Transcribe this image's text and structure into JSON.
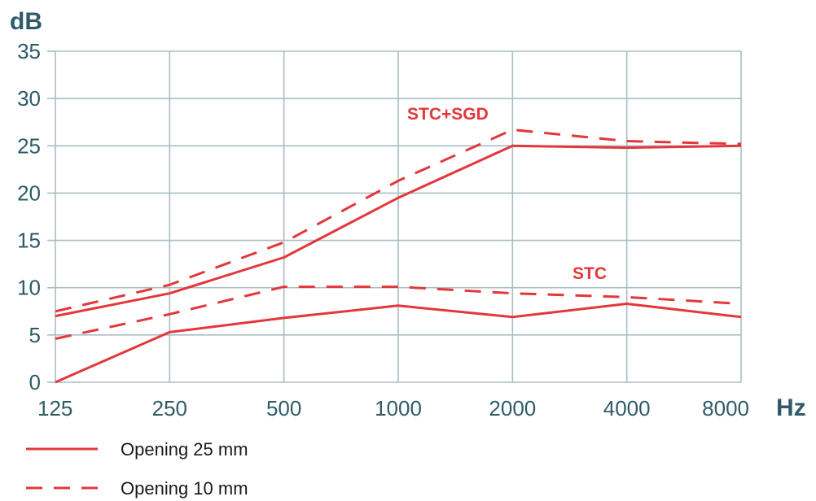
{
  "chart_data": {
    "type": "line",
    "y_unit": "dB",
    "x_unit": "Hz",
    "categories": [
      "125",
      "250",
      "500",
      "1000",
      "2000",
      "4000",
      "8000"
    ],
    "ylim": [
      0,
      35
    ],
    "yticks": [
      "0",
      "5",
      "10",
      "15",
      "20",
      "25",
      "30",
      "35"
    ],
    "grid": true,
    "series": [
      {
        "name": "Opening 25 mm",
        "group": "STC+SGD",
        "style": "solid",
        "values": [
          7.0,
          9.4,
          13.2,
          19.5,
          25.0,
          24.8,
          25.0
        ]
      },
      {
        "name": "Opening 10 mm",
        "group": "STC+SGD",
        "style": "dashed",
        "values": [
          7.5,
          10.3,
          14.8,
          21.3,
          26.7,
          25.5,
          25.2
        ]
      },
      {
        "name": "Opening 25 mm",
        "group": "STC",
        "style": "solid",
        "values": [
          0.0,
          5.3,
          6.8,
          8.1,
          6.9,
          8.3,
          6.9
        ]
      },
      {
        "name": "Opening 10 mm",
        "group": "STC",
        "style": "dashed",
        "values": [
          4.6,
          7.2,
          10.1,
          10.1,
          9.4,
          9.0,
          8.3
        ]
      }
    ],
    "annotations": [
      "STC+SGD",
      "STC"
    ],
    "legend": {
      "placement": "bottom-left",
      "items": [
        {
          "label": "Opening 25 mm",
          "style": "solid"
        },
        {
          "label": "Opening 10 mm",
          "style": "dashed"
        }
      ]
    },
    "colors": {
      "line": "#e3373b",
      "grid": "#a9bec3",
      "text": "#2f5b68"
    }
  }
}
